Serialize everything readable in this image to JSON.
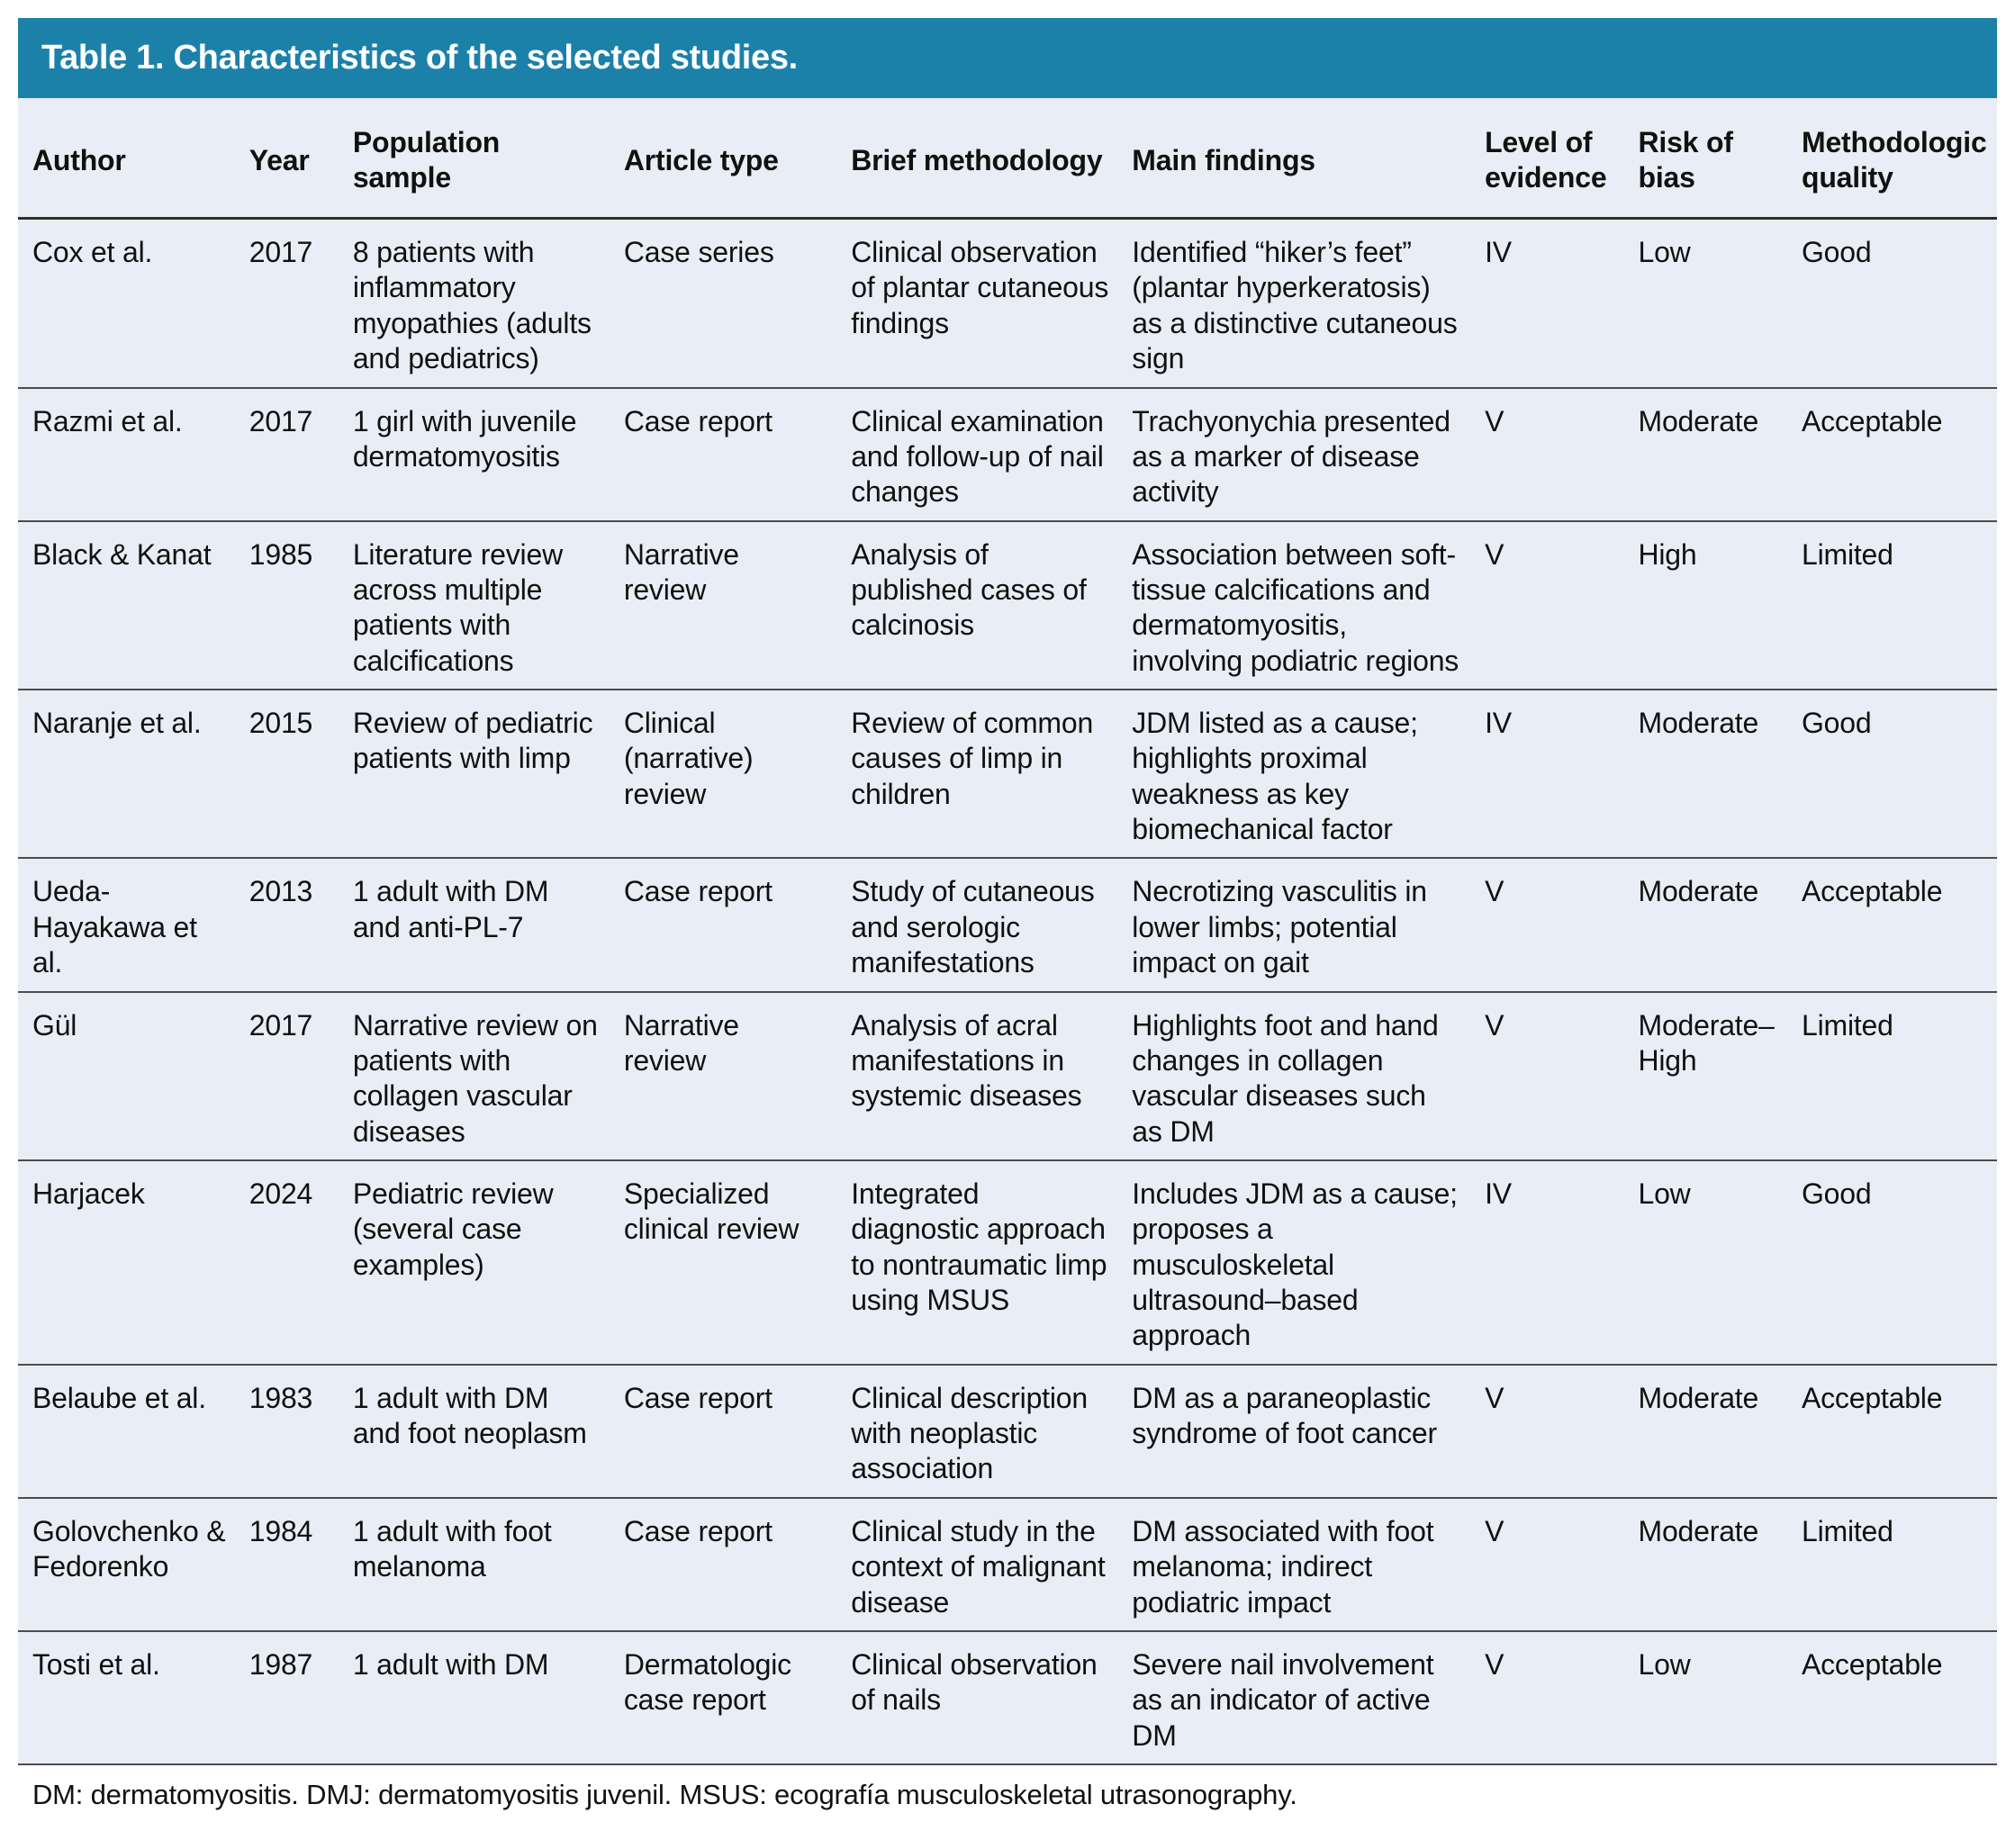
{
  "title": "Table 1. Characteristics of the selected studies.",
  "colors": {
    "title_bar_bg": "#1c81a9",
    "title_text": "#ffffff",
    "table_bg": "#e9eef6",
    "rule_dark": "#2f2f2f",
    "rule_row": "#4c4c4c"
  },
  "columns": [
    "Author",
    "Year",
    "Population sample",
    "Article type",
    "Brief methodology",
    "Main findings",
    "Level of evidence",
    "Risk of bias",
    "Methodologic quality"
  ],
  "rows": [
    {
      "author": "Cox et al.",
      "year": "2017",
      "population": "8 patients with inflammatory myopathies (adults and pediatrics)",
      "article_type": "Case series",
      "methodology": "Clinical observation of plantar cutaneous findings",
      "findings": "Identified “hiker’s feet” (plantar hyperkeratosis) as a distinctive cutaneous sign",
      "evidence": "IV",
      "bias": "Low",
      "quality": "Good"
    },
    {
      "author": "Razmi et al.",
      "year": "2017",
      "population": "1 girl with juvenile dermatomyositis",
      "article_type": "Case report",
      "methodology": "Clinical examination and follow-up of nail changes",
      "findings": "Trachyonychia presented as a marker of disease activity",
      "evidence": "V",
      "bias": "Moderate",
      "quality": "Acceptable"
    },
    {
      "author": "Black & Kanat",
      "year": "1985",
      "population": "Literature review across multiple patients with calcifications",
      "article_type": "Narrative review",
      "methodology": "Analysis of published cases of calcinosis",
      "findings": "Association between soft-tissue calcifications and dermatomyositis, involving podiatric regions",
      "evidence": "V",
      "bias": "High",
      "quality": "Limited"
    },
    {
      "author": "Naranje et al.",
      "year": "2015",
      "population": "Review of pediatric patients with limp",
      "article_type": "Clinical (narrative) review",
      "methodology": "Review of common causes of limp in children",
      "findings": "JDM listed as a cause; highlights proximal weakness as key biomechanical factor",
      "evidence": "IV",
      "bias": "Moderate",
      "quality": "Good"
    },
    {
      "author": "Ueda-Hayakawa et al.",
      "year": "2013",
      "population": "1 adult with DM and anti-PL-7",
      "article_type": "Case report",
      "methodology": "Study of cutaneous and serologic manifestations",
      "findings": "Necrotizing vasculitis in lower limbs; potential impact on gait",
      "evidence": "V",
      "bias": "Moderate",
      "quality": "Acceptable"
    },
    {
      "author": "Gül",
      "year": "2017",
      "population": "Narrative review on patients with collagen vascular diseases",
      "article_type": "Narrative review",
      "methodology": "Analysis of acral manifestations in systemic diseases",
      "findings": "Highlights foot and hand changes in collagen vascular diseases such as DM",
      "evidence": "V",
      "bias": "Moderate–High",
      "quality": "Limited"
    },
    {
      "author": "Harjacek",
      "year": "2024",
      "population": "Pediatric review (several case examples)",
      "article_type": "Specialized clinical review",
      "methodology": "Integrated diagnostic approach to nontraumatic limp using MSUS",
      "findings": "Includes JDM as a cause; proposes a musculoskeletal ultrasound–based approach",
      "evidence": "IV",
      "bias": "Low",
      "quality": "Good"
    },
    {
      "author": "Belaube et al.",
      "year": "1983",
      "population": "1 adult with DM and foot neoplasm",
      "article_type": "Case report",
      "methodology": "Clinical description with neoplastic association",
      "findings": "DM as a paraneoplastic syndrome of foot cancer",
      "evidence": "V",
      "bias": "Moderate",
      "quality": "Acceptable"
    },
    {
      "author": "Golovchenko & Fedorenko",
      "year": "1984",
      "population": "1 adult with foot melanoma",
      "article_type": "Case report",
      "methodology": "Clinical study in the context of malignant disease",
      "findings": "DM associated with foot melanoma; indirect podiatric impact",
      "evidence": "V",
      "bias": "Moderate",
      "quality": "Limited"
    },
    {
      "author": "Tosti et al.",
      "year": "1987",
      "population": "1 adult with DM",
      "article_type": "Dermatologic case report",
      "methodology": "Clinical observation of nails",
      "findings": "Severe nail involvement as an indicator of active DM",
      "evidence": "V",
      "bias": "Low",
      "quality": "Acceptable"
    }
  ],
  "footnote": "DM: dermatomyositis. DMJ: dermatomyositis juvenil. MSUS: ecografía musculoskeletal utrasonography."
}
